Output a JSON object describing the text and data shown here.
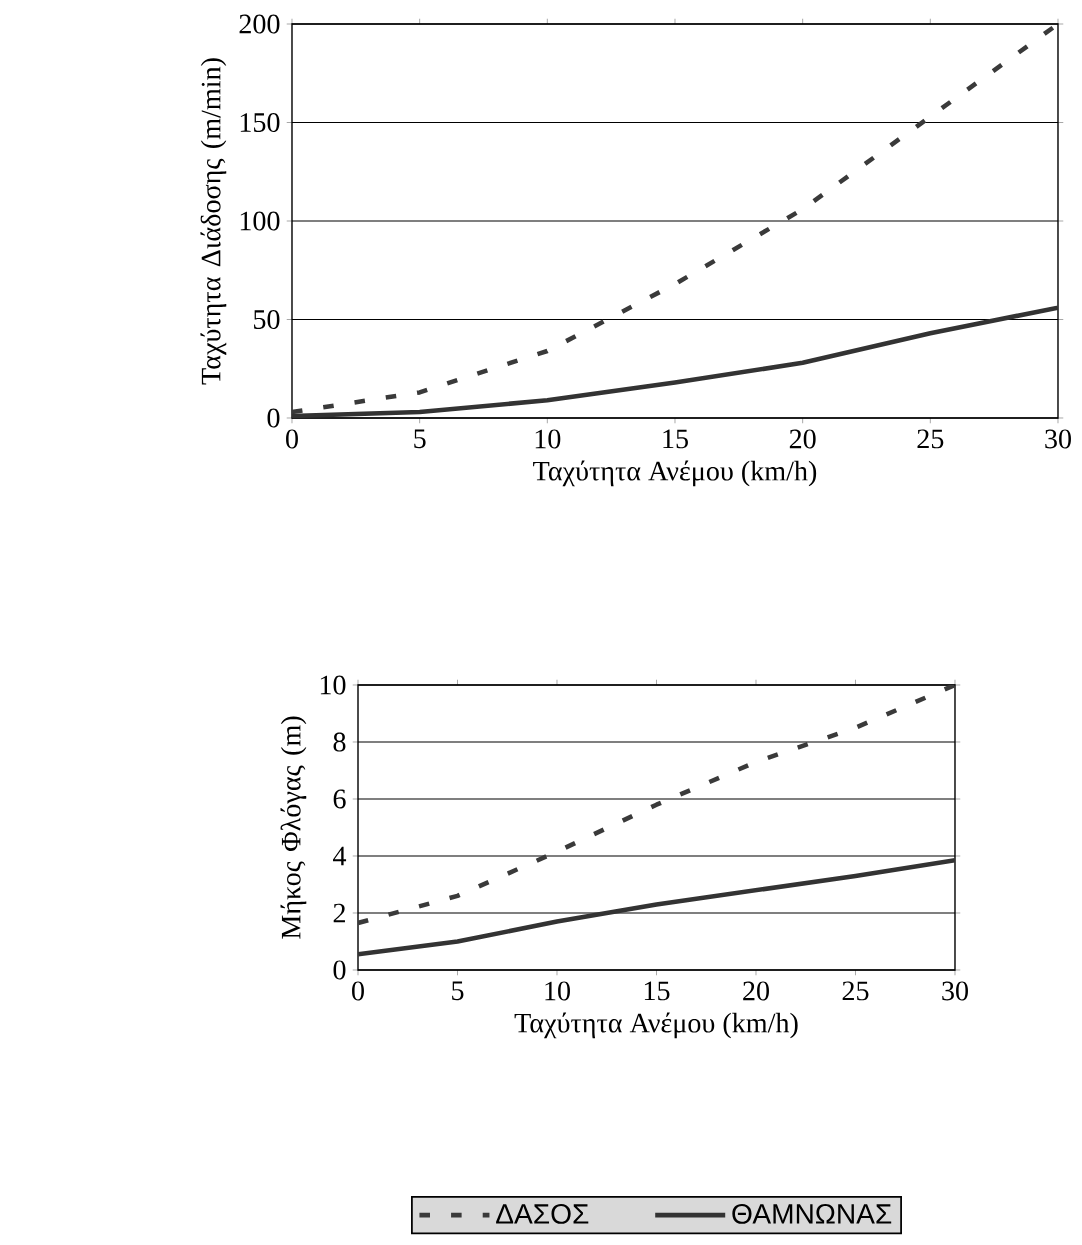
{
  "chart_data": [
    {
      "type": "line",
      "xlabel": "Ταχύτητα Ανέμου (km/h)",
      "ylabel": "Ταχύτητα Διάδοσης (m/min)",
      "x": [
        0,
        5,
        10,
        15,
        20,
        25,
        30
      ],
      "xlim": [
        0,
        30
      ],
      "xticks": [
        0,
        5,
        10,
        15,
        20,
        25,
        30
      ],
      "ylim": [
        0,
        200
      ],
      "yticks": [
        0,
        50,
        100,
        150,
        200
      ],
      "grid": "y",
      "legend": false,
      "series": [
        {
          "color": "#3a3a3a",
          "line_style": "dashed",
          "values": [
            3,
            13,
            34,
            68,
            106,
            153,
            200
          ]
        },
        {
          "color": "#333333",
          "line_style": "solid",
          "values": [
            1,
            3,
            9,
            18,
            28,
            43,
            56
          ]
        }
      ]
    },
    {
      "type": "line",
      "xlabel": "Ταχύτητα Ανέμου (km/h)",
      "ylabel": "Μήκος Φλόγας (m)",
      "x": [
        0,
        5,
        10,
        15,
        20,
        25,
        30
      ],
      "xlim": [
        0,
        30
      ],
      "xticks": [
        0,
        5,
        10,
        15,
        20,
        25,
        30
      ],
      "ylim": [
        0,
        10
      ],
      "yticks": [
        0,
        2,
        4,
        6,
        8,
        10
      ],
      "grid": "y",
      "legend": "bottom",
      "series": [
        {
          "name": "ΔΑΣΟΣ",
          "color": "#3a3a3a",
          "line_style": "dashed",
          "values": [
            1.65,
            2.6,
            4.15,
            5.8,
            7.3,
            8.5,
            10
          ]
        },
        {
          "name": "ΘΑΜΝΩΝΑΣ",
          "color": "#333333",
          "line_style": "solid",
          "values": [
            0.55,
            1.0,
            1.7,
            2.3,
            2.8,
            3.3,
            3.85
          ]
        }
      ]
    }
  ]
}
